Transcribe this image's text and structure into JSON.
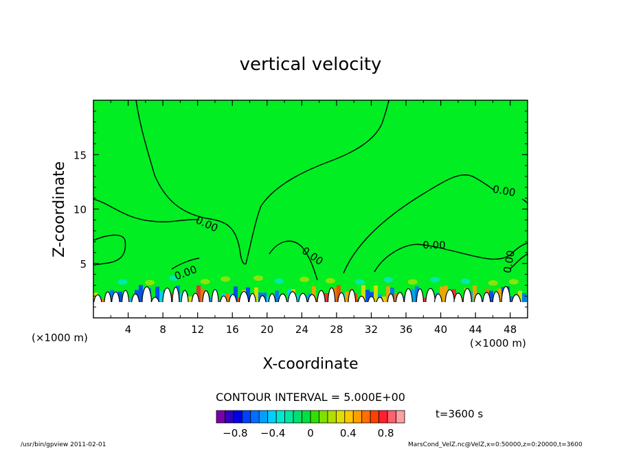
{
  "chart_data": {
    "type": "heatmap",
    "title": "vertical velocity",
    "xlabel": "X-coordinate",
    "ylabel": "Z-coordinate",
    "x_unit": "(×1000 m)",
    "y_unit": "(×1000 m)",
    "xlim": [
      0,
      50
    ],
    "ylim": [
      0,
      20
    ],
    "x_ticks": [
      4,
      8,
      12,
      16,
      20,
      24,
      28,
      32,
      36,
      40,
      44,
      48
    ],
    "y_ticks": [
      5,
      10,
      15
    ],
    "contour_label": "0.00",
    "contour_interval_text": "CONTOUR INTERVAL = 5.000E+00",
    "time_text": "t=3600 s",
    "footer_left": "/usr/bin/gpview   2011-02-01",
    "footer_right": "MarsCond_VelZ.nc@VelZ,x=0:50000,z=0:20000,t=3600",
    "colorbar": {
      "tick_labels": [
        "−0.8",
        "−0.4",
        "0",
        "0.4",
        "0.8"
      ],
      "tick_values": [
        -0.8,
        -0.4,
        0,
        0.4,
        0.8
      ],
      "range": [
        -1.0,
        1.0
      ],
      "colors": [
        "#7a00a8",
        "#3000c0",
        "#0000e0",
        "#0040ff",
        "#0070ff",
        "#00a0ff",
        "#00d0ff",
        "#00e8d0",
        "#00e8a0",
        "#00e070",
        "#00e040",
        "#30e000",
        "#80e000",
        "#b0e000",
        "#e0e000",
        "#ffc800",
        "#ffa000",
        "#ff7000",
        "#ff4000",
        "#ff2030",
        "#ff6070",
        "#ffa0a0"
      ]
    },
    "background_color": "#00ee22"
  }
}
